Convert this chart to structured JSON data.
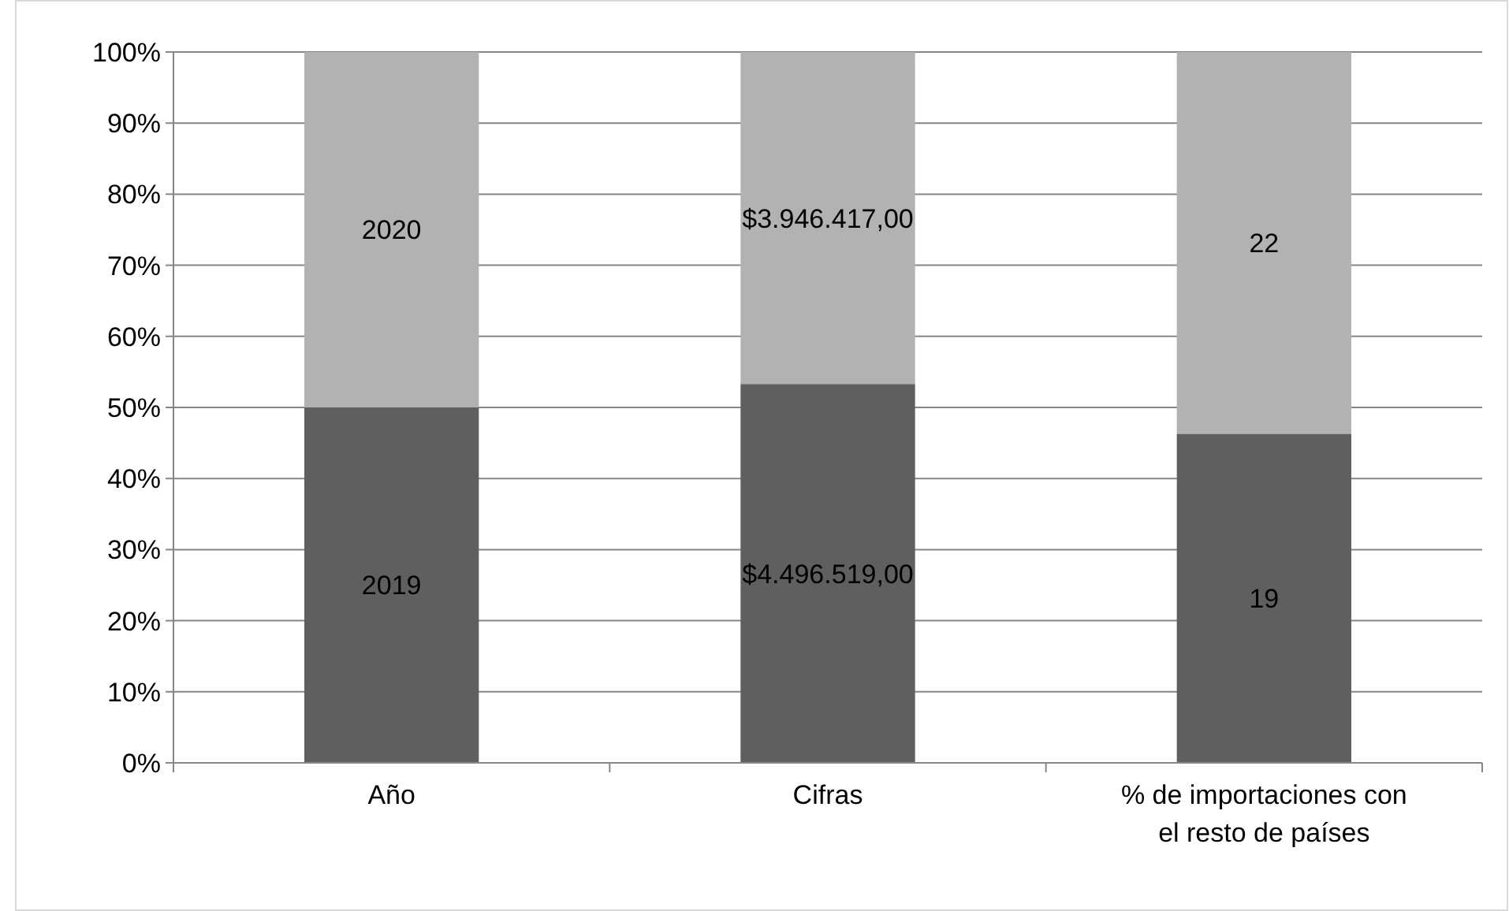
{
  "chart_data": {
    "type": "bar",
    "stacked": true,
    "categories": [
      "Año",
      "Cifras",
      "% de importaciones con el resto de países"
    ],
    "series": [
      {
        "color": "#5f5f5f",
        "values": [
          50.0,
          53.3,
          46.3
        ]
      },
      {
        "color": "#b2b2b2",
        "values": [
          50.0,
          46.7,
          53.7
        ]
      }
    ],
    "annotations": [
      "2019",
      "$4.496.519,00",
      "19",
      "2020",
      "$3.946.417,00",
      "22"
    ],
    "ylim": [
      0,
      100
    ],
    "yticks": [
      {
        "value": 0,
        "label": "0%"
      },
      {
        "value": 10,
        "label": "10%"
      },
      {
        "value": 20,
        "label": "20%"
      },
      {
        "value": 30,
        "label": "30%"
      },
      {
        "value": 40,
        "label": "40%"
      },
      {
        "value": 50,
        "label": "50%"
      },
      {
        "value": 60,
        "label": "60%"
      },
      {
        "value": 70,
        "label": "70%"
      },
      {
        "value": 80,
        "label": "80%"
      },
      {
        "value": 90,
        "label": "90%"
      },
      {
        "value": 100,
        "label": "100%"
      }
    ],
    "grid": "y"
  }
}
